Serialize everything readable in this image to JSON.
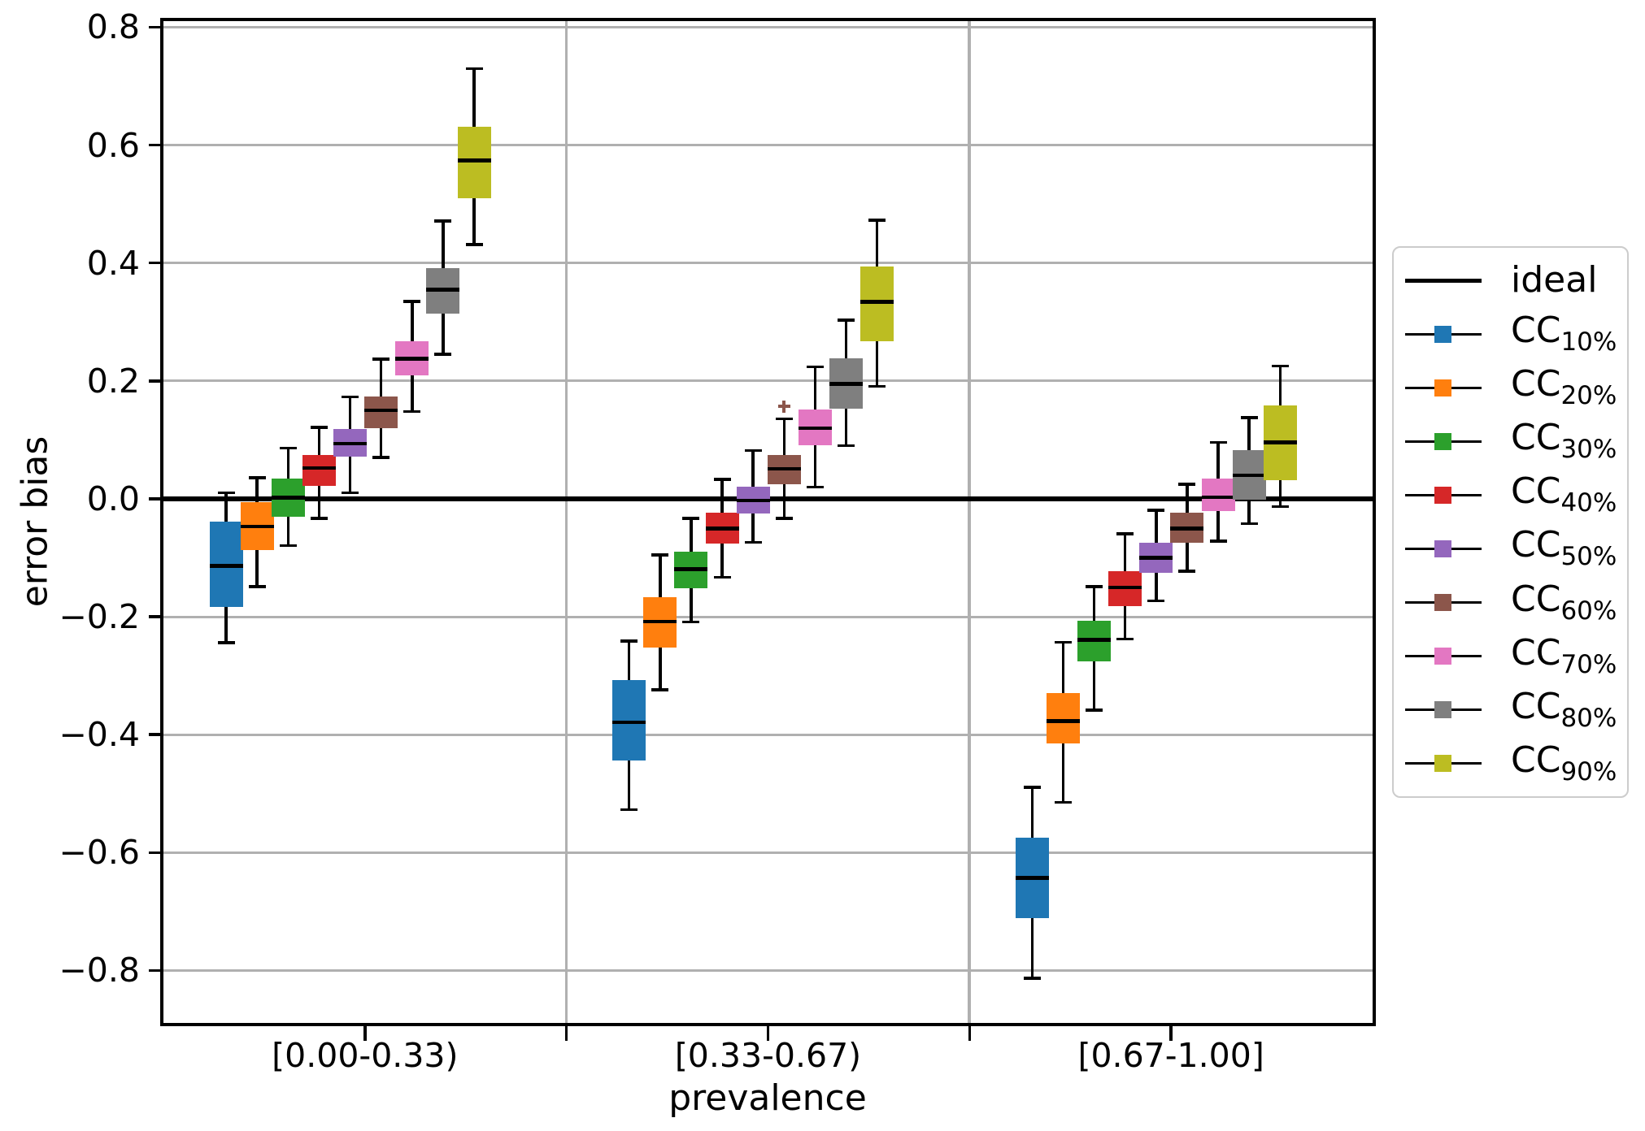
{
  "axes": {
    "ylabel": "error bias",
    "xlabel": "prevalence"
  },
  "chart_data": {
    "type": "boxplot",
    "title": "",
    "xlabel": "prevalence",
    "ylabel": "error bias",
    "categories": [
      "[0.00-0.33)",
      "[0.33-0.67)",
      "[0.67-1.00]"
    ],
    "ylim": [
      -0.889,
      0.81
    ],
    "grid": "horizontal light-gray gridlines at each y tick; vertical light-gray separators between the three prevalence groups",
    "legend_position": "outside right, vertically centered",
    "yticks": {
      "values": [
        0.8,
        0.6,
        0.4,
        0.2,
        0.0,
        -0.2,
        -0.4,
        -0.6,
        -0.8
      ],
      "labels": [
        "0.8",
        "0.6",
        "0.4",
        "0.2",
        "0.0",
        "−0.2",
        "−0.4",
        "−0.6",
        "−0.8"
      ]
    },
    "ideal_line": {
      "label": "ideal",
      "value": 0.0,
      "color": "#000000"
    },
    "stats_order": [
      "whisker_low",
      "q1",
      "median",
      "q3",
      "whisker_high"
    ],
    "series": [
      {
        "name": "CC",
        "sub": "10%",
        "color": "#1f77b4",
        "stats": [
          [
            -0.244,
            -0.184,
            -0.114,
            -0.038,
            0.01
          ],
          [
            -0.527,
            -0.444,
            -0.379,
            -0.308,
            -0.241
          ],
          [
            -0.813,
            -0.711,
            -0.643,
            -0.575,
            -0.489
          ]
        ]
      },
      {
        "name": "CC",
        "sub": "20%",
        "color": "#ff7f0e",
        "stats": [
          [
            -0.149,
            -0.087,
            -0.047,
            -0.005,
            0.036
          ],
          [
            -0.324,
            -0.252,
            -0.208,
            -0.167,
            -0.095
          ],
          [
            -0.515,
            -0.415,
            -0.377,
            -0.33,
            -0.243
          ]
        ]
      },
      {
        "name": "CC",
        "sub": "30%",
        "color": "#2ca02c",
        "stats": [
          [
            -0.079,
            -0.03,
            0.002,
            0.034,
            0.086
          ],
          [
            -0.209,
            -0.151,
            -0.119,
            -0.089,
            -0.033
          ],
          [
            -0.358,
            -0.275,
            -0.239,
            -0.207,
            -0.149
          ]
        ]
      },
      {
        "name": "CC",
        "sub": "40%",
        "color": "#d62728",
        "stats": [
          [
            -0.033,
            0.022,
            0.052,
            0.075,
            0.121
          ],
          [
            -0.133,
            -0.076,
            -0.05,
            -0.024,
            0.033
          ],
          [
            -0.238,
            -0.182,
            -0.15,
            -0.123,
            -0.059
          ]
        ]
      },
      {
        "name": "CC",
        "sub": "50%",
        "color": "#9467bd",
        "stats": [
          [
            0.01,
            0.071,
            0.094,
            0.118,
            0.173
          ],
          [
            -0.074,
            -0.025,
            -0.003,
            0.02,
            0.082
          ],
          [
            -0.173,
            -0.125,
            -0.1,
            -0.075,
            -0.019
          ]
        ]
      },
      {
        "name": "CC",
        "sub": "60%",
        "color": "#8c564b",
        "stats": [
          [
            0.07,
            0.12,
            0.15,
            0.173,
            0.237
          ],
          [
            -0.033,
            0.025,
            0.051,
            0.074,
            0.136
          ],
          [
            -0.123,
            -0.074,
            -0.05,
            -0.023,
            0.025
          ]
        ]
      },
      {
        "name": "CC",
        "sub": "70%",
        "color": "#e377c2",
        "stats": [
          [
            0.148,
            0.209,
            0.238,
            0.267,
            0.335
          ],
          [
            0.02,
            0.091,
            0.12,
            0.152,
            0.224
          ],
          [
            -0.072,
            -0.021,
            0.003,
            0.034,
            0.096
          ]
        ]
      },
      {
        "name": "CC",
        "sub": "80%",
        "color": "#7f7f7f",
        "stats": [
          [
            0.245,
            0.314,
            0.355,
            0.392,
            0.471
          ],
          [
            0.09,
            0.153,
            0.195,
            0.238,
            0.303
          ],
          [
            -0.042,
            -0.002,
            0.04,
            0.082,
            0.138
          ]
        ]
      },
      {
        "name": "CC",
        "sub": "90%",
        "color": "#bcbd22",
        "stats": [
          [
            0.431,
            0.51,
            0.574,
            0.631,
            0.73
          ],
          [
            0.191,
            0.268,
            0.334,
            0.394,
            0.473
          ],
          [
            -0.013,
            0.032,
            0.096,
            0.158,
            0.225
          ]
        ]
      }
    ],
    "outliers": [
      {
        "series_index": 5,
        "category_index": 1,
        "value": 0.157
      }
    ]
  },
  "colors": {
    "gridline": "#b0b0b0",
    "separator": "#b0b0b0",
    "spine": "#000000",
    "legend_border": "#cccccc"
  }
}
